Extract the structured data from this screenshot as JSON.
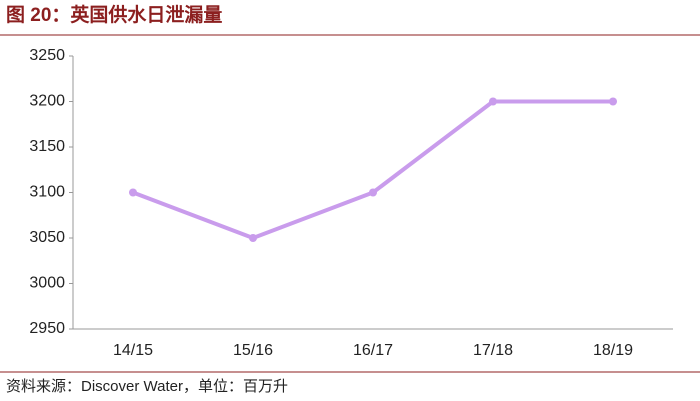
{
  "chart_data": {
    "type": "line",
    "title": "图 20：英国供水日泄漏量",
    "source": "资料来源：Discover Water，单位：百万升",
    "categories": [
      "14/15",
      "15/16",
      "16/17",
      "17/18",
      "18/19"
    ],
    "values": [
      3100,
      3050,
      3100,
      3200,
      3200
    ],
    "color": "#c99cec",
    "ylim": [
      2950,
      3250
    ],
    "yticks": [
      2950,
      3000,
      3050,
      3100,
      3150,
      3200,
      3250
    ],
    "grid": false
  }
}
